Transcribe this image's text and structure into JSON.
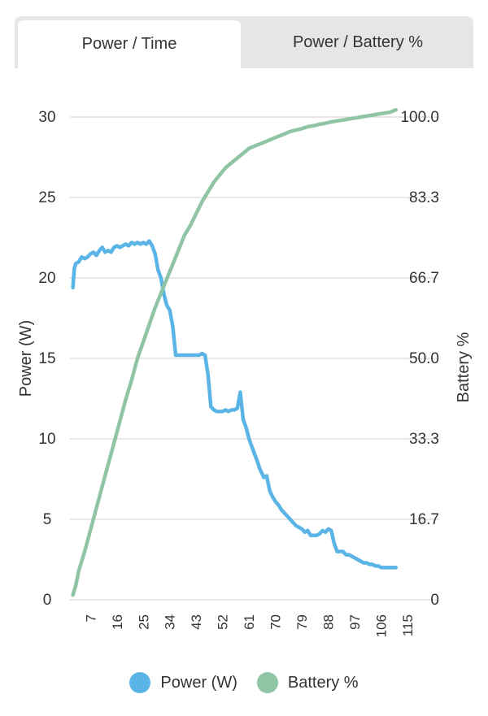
{
  "tabs": [
    {
      "label": "Power / Time",
      "active": true
    },
    {
      "label": "Power / Battery %",
      "active": false
    }
  ],
  "chart_data": {
    "type": "line",
    "xlabel": "",
    "ylabel_left": "Power (W)",
    "ylabel_right": "Battery %",
    "x_ticks": [
      "7",
      "16",
      "25",
      "34",
      "43",
      "52",
      "61",
      "70",
      "79",
      "88",
      "97",
      "106",
      "115"
    ],
    "y_left_ticks": [
      "0",
      "5",
      "10",
      "15",
      "20",
      "25",
      "30"
    ],
    "y_right_ticks": [
      "0",
      "16.7",
      "33.3",
      "50.0",
      "66.7",
      "83.3",
      "100.0"
    ],
    "xlim": [
      0,
      118
    ],
    "ylim_left": [
      0,
      30
    ],
    "ylim_right": [
      0,
      100
    ],
    "grid": true,
    "legend_position": "bottom",
    "series": [
      {
        "name": "Power (W)",
        "color": "#5ab4e5",
        "axis": "left",
        "x": [
          1,
          1.5,
          2,
          3,
          4,
          5,
          6,
          7,
          8,
          9,
          10,
          11,
          12,
          13,
          14,
          15,
          16,
          17,
          18,
          19,
          20,
          21,
          22,
          23,
          24,
          25,
          26,
          27,
          28,
          29,
          30,
          31,
          32,
          33,
          34,
          35,
          36,
          37,
          38,
          39,
          40,
          41,
          42,
          43,
          44,
          45,
          46,
          47,
          48,
          49,
          50,
          51,
          52,
          53,
          54,
          55,
          56,
          57,
          58,
          59,
          60,
          61,
          62,
          63,
          64,
          64.5,
          65,
          66,
          67,
          68,
          69,
          70,
          71,
          72,
          73,
          74,
          75,
          76,
          77,
          78,
          79,
          80,
          81,
          82,
          83,
          84,
          85,
          86,
          87,
          88,
          89,
          90,
          91,
          92,
          93,
          94,
          95,
          96,
          97,
          98,
          99,
          100,
          101,
          102,
          103,
          104,
          105,
          106,
          107,
          108,
          109,
          110,
          111
        ],
        "values": [
          19.4,
          20.6,
          20.9,
          21.0,
          21.3,
          21.2,
          21.3,
          21.5,
          21.6,
          21.4,
          21.7,
          21.9,
          21.6,
          21.7,
          21.6,
          21.9,
          22.0,
          21.9,
          22.0,
          22.1,
          22.0,
          22.2,
          22.1,
          22.2,
          22.1,
          22.2,
          22.1,
          22.3,
          22.0,
          21.5,
          20.5,
          20.0,
          19.0,
          18.3,
          18.0,
          17.0,
          15.2,
          15.2,
          15.2,
          15.2,
          15.2,
          15.2,
          15.2,
          15.2,
          15.2,
          15.3,
          15.2,
          14.0,
          12.0,
          11.8,
          11.7,
          11.7,
          11.7,
          11.8,
          11.7,
          11.8,
          11.8,
          11.9,
          12.9,
          11.2,
          10.7,
          10.0,
          9.5,
          9.0,
          8.5,
          8.2,
          8.0,
          7.6,
          7.7,
          6.8,
          6.4,
          6.1,
          5.9,
          5.6,
          5.4,
          5.2,
          5.0,
          4.8,
          4.6,
          4.5,
          4.4,
          4.2,
          4.3,
          4.0,
          4.0,
          4.0,
          4.1,
          4.3,
          4.2,
          4.4,
          4.3,
          3.5,
          3.0,
          3.0,
          3.0,
          2.8,
          2.8,
          2.7,
          2.6,
          2.5,
          2.4,
          2.3,
          2.3,
          2.2,
          2.2,
          2.1,
          2.1,
          2.0,
          2.0,
          2.0,
          2.0,
          2.0,
          2.0
        ]
      },
      {
        "name": "Battery %",
        "color": "#8fc4a4",
        "axis": "right",
        "x": [
          1,
          2,
          3,
          5,
          7,
          9,
          11,
          13,
          15,
          17,
          19,
          21,
          23,
          25,
          27,
          29,
          31,
          33,
          35,
          37,
          39,
          41,
          43,
          45,
          47,
          49,
          51,
          53,
          55,
          57,
          59,
          61,
          63,
          65,
          67,
          69,
          71,
          73,
          75,
          77,
          79,
          81,
          83,
          85,
          87,
          89,
          91,
          93,
          95,
          97,
          99,
          101,
          103,
          105,
          107,
          109,
          111
        ],
        "values": [
          1.0,
          3.0,
          6.0,
          10.0,
          14.5,
          19.0,
          23.5,
          28.0,
          32.5,
          37.0,
          41.5,
          45.5,
          50.0,
          53.5,
          57.0,
          60.5,
          63.5,
          66.5,
          69.5,
          72.5,
          75.5,
          77.5,
          80.0,
          82.5,
          84.5,
          86.5,
          88.0,
          89.5,
          90.5,
          91.5,
          92.5,
          93.5,
          94.0,
          94.5,
          95.0,
          95.5,
          96.0,
          96.5,
          97.0,
          97.3,
          97.6,
          98.0,
          98.2,
          98.5,
          98.7,
          99.0,
          99.2,
          99.4,
          99.6,
          99.8,
          100.0,
          100.2,
          100.4,
          100.6,
          100.8,
          101.0,
          101.5
        ]
      }
    ]
  }
}
